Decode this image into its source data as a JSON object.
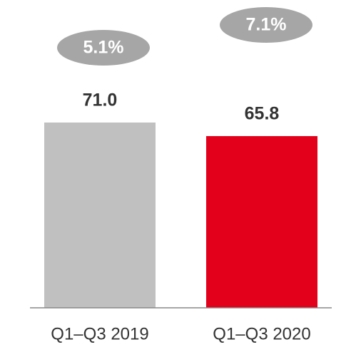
{
  "chart_data": {
    "type": "bar",
    "categories": [
      "Q1–Q3 2019",
      "Q1–Q3 2020"
    ],
    "values": [
      71.0,
      65.8
    ],
    "value_labels": [
      "71.0",
      "65.8"
    ],
    "colors": [
      "#c0c0c0",
      "#e2001a"
    ],
    "annotations": [
      "5.1%",
      "7.1%"
    ],
    "ylim": [
      0,
      80
    ]
  }
}
